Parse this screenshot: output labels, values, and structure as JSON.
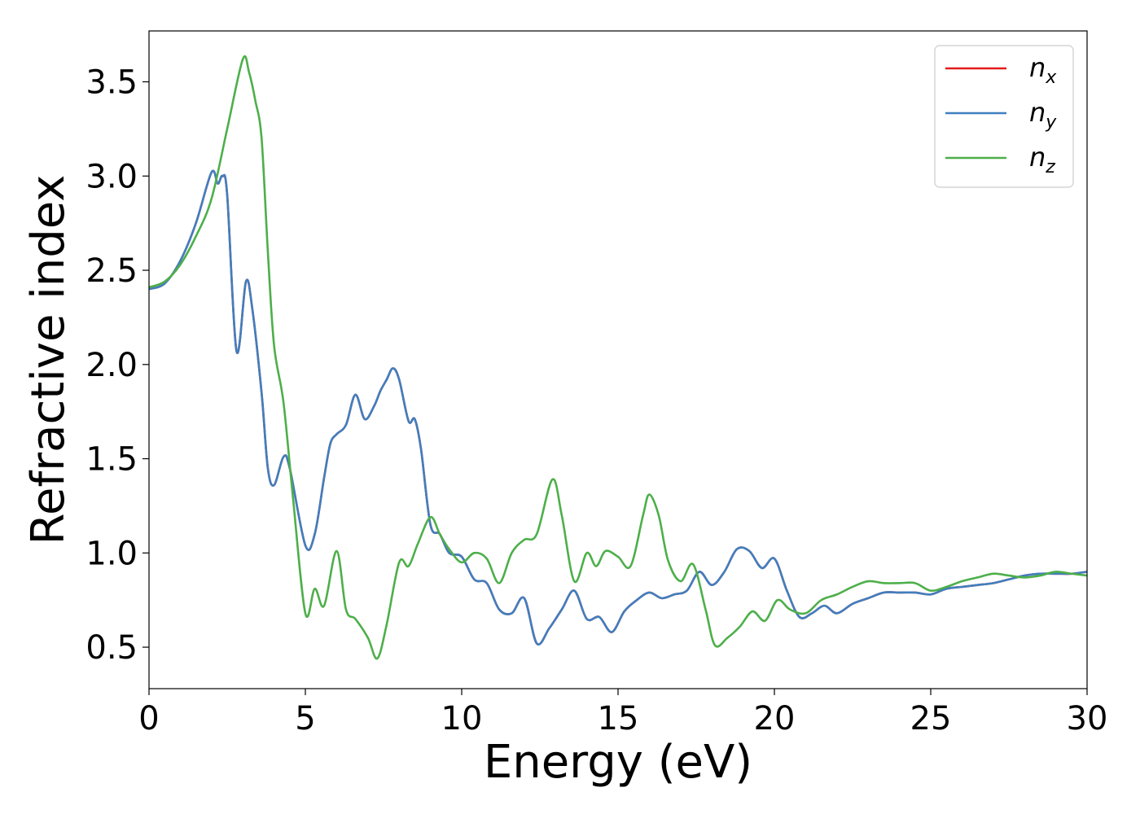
{
  "chart_data": {
    "type": "line",
    "xlabel": "Energy (eV)",
    "ylabel": "Refractive index",
    "xlim": [
      0,
      30
    ],
    "ylim": [
      0.28,
      3.77
    ],
    "xticks": [
      0,
      5,
      10,
      15,
      20,
      25,
      30
    ],
    "yticks": [
      0.5,
      1.0,
      1.5,
      2.0,
      2.5,
      3.0,
      3.5
    ],
    "xtick_labels": [
      "0",
      "5",
      "10",
      "15",
      "20",
      "25",
      "30"
    ],
    "ytick_labels": [
      "0.5",
      "1.0",
      "1.5",
      "2.0",
      "2.5",
      "3.0",
      "3.5"
    ],
    "grid": false,
    "legend_position": "top-right",
    "series": [
      {
        "name": "n_x",
        "legend_base": "n",
        "legend_sub": "x",
        "color": "#e41a1c",
        "points": [
          [
            0,
            2.4
          ],
          [
            0.5,
            2.43
          ],
          [
            1.0,
            2.55
          ],
          [
            1.5,
            2.75
          ],
          [
            2.0,
            3.02
          ],
          [
            2.2,
            2.96
          ],
          [
            2.35,
            3.0
          ],
          [
            2.5,
            2.9
          ],
          [
            2.8,
            2.07
          ],
          [
            3.1,
            2.44
          ],
          [
            3.3,
            2.3
          ],
          [
            3.6,
            1.85
          ],
          [
            3.8,
            1.45
          ],
          [
            4.0,
            1.36
          ],
          [
            4.3,
            1.51
          ],
          [
            4.5,
            1.45
          ],
          [
            5.0,
            1.04
          ],
          [
            5.3,
            1.1
          ],
          [
            5.6,
            1.4
          ],
          [
            5.8,
            1.58
          ],
          [
            6.0,
            1.63
          ],
          [
            6.3,
            1.68
          ],
          [
            6.6,
            1.84
          ],
          [
            6.9,
            1.71
          ],
          [
            7.2,
            1.78
          ],
          [
            7.4,
            1.86
          ],
          [
            7.6,
            1.92
          ],
          [
            7.8,
            1.98
          ],
          [
            8.0,
            1.92
          ],
          [
            8.3,
            1.7
          ],
          [
            8.5,
            1.71
          ],
          [
            8.7,
            1.55
          ],
          [
            9.0,
            1.15
          ],
          [
            9.3,
            1.1
          ],
          [
            9.6,
            1.0
          ],
          [
            10.0,
            0.98
          ],
          [
            10.4,
            0.86
          ],
          [
            10.8,
            0.84
          ],
          [
            11.2,
            0.7
          ],
          [
            11.6,
            0.68
          ],
          [
            12.0,
            0.76
          ],
          [
            12.4,
            0.52
          ],
          [
            12.8,
            0.6
          ],
          [
            13.2,
            0.7
          ],
          [
            13.6,
            0.8
          ],
          [
            14.0,
            0.65
          ],
          [
            14.4,
            0.66
          ],
          [
            14.8,
            0.58
          ],
          [
            15.2,
            0.69
          ],
          [
            15.6,
            0.75
          ],
          [
            16.0,
            0.79
          ],
          [
            16.4,
            0.76
          ],
          [
            16.8,
            0.78
          ],
          [
            17.2,
            0.8
          ],
          [
            17.6,
            0.9
          ],
          [
            18.0,
            0.83
          ],
          [
            18.4,
            0.9
          ],
          [
            18.8,
            1.02
          ],
          [
            19.2,
            1.01
          ],
          [
            19.6,
            0.92
          ],
          [
            20.0,
            0.97
          ],
          [
            20.4,
            0.8
          ],
          [
            20.8,
            0.66
          ],
          [
            21.2,
            0.68
          ],
          [
            21.6,
            0.72
          ],
          [
            22.0,
            0.68
          ],
          [
            22.5,
            0.73
          ],
          [
            23.0,
            0.76
          ],
          [
            23.5,
            0.79
          ],
          [
            24.0,
            0.79
          ],
          [
            24.5,
            0.79
          ],
          [
            25.0,
            0.78
          ],
          [
            25.5,
            0.81
          ],
          [
            26.0,
            0.82
          ],
          [
            26.5,
            0.83
          ],
          [
            27.0,
            0.84
          ],
          [
            27.5,
            0.86
          ],
          [
            28.0,
            0.88
          ],
          [
            28.5,
            0.89
          ],
          [
            29.0,
            0.89
          ],
          [
            29.5,
            0.89
          ],
          [
            30.0,
            0.9
          ]
        ]
      },
      {
        "name": "n_y",
        "legend_base": "n",
        "legend_sub": "y",
        "color": "#3f7fbf",
        "points": [
          [
            0,
            2.4
          ],
          [
            0.5,
            2.43
          ],
          [
            1.0,
            2.55
          ],
          [
            1.5,
            2.75
          ],
          [
            2.0,
            3.02
          ],
          [
            2.2,
            2.96
          ],
          [
            2.35,
            3.0
          ],
          [
            2.5,
            2.9
          ],
          [
            2.8,
            2.07
          ],
          [
            3.1,
            2.44
          ],
          [
            3.3,
            2.3
          ],
          [
            3.6,
            1.85
          ],
          [
            3.8,
            1.45
          ],
          [
            4.0,
            1.36
          ],
          [
            4.3,
            1.51
          ],
          [
            4.5,
            1.45
          ],
          [
            5.0,
            1.04
          ],
          [
            5.3,
            1.1
          ],
          [
            5.6,
            1.4
          ],
          [
            5.8,
            1.58
          ],
          [
            6.0,
            1.63
          ],
          [
            6.3,
            1.68
          ],
          [
            6.6,
            1.84
          ],
          [
            6.9,
            1.71
          ],
          [
            7.2,
            1.78
          ],
          [
            7.4,
            1.86
          ],
          [
            7.6,
            1.92
          ],
          [
            7.8,
            1.98
          ],
          [
            8.0,
            1.92
          ],
          [
            8.3,
            1.7
          ],
          [
            8.5,
            1.71
          ],
          [
            8.7,
            1.55
          ],
          [
            9.0,
            1.15
          ],
          [
            9.3,
            1.1
          ],
          [
            9.6,
            1.0
          ],
          [
            10.0,
            0.98
          ],
          [
            10.4,
            0.86
          ],
          [
            10.8,
            0.84
          ],
          [
            11.2,
            0.7
          ],
          [
            11.6,
            0.68
          ],
          [
            12.0,
            0.76
          ],
          [
            12.4,
            0.52
          ],
          [
            12.8,
            0.6
          ],
          [
            13.2,
            0.7
          ],
          [
            13.6,
            0.8
          ],
          [
            14.0,
            0.65
          ],
          [
            14.4,
            0.66
          ],
          [
            14.8,
            0.58
          ],
          [
            15.2,
            0.69
          ],
          [
            15.6,
            0.75
          ],
          [
            16.0,
            0.79
          ],
          [
            16.4,
            0.76
          ],
          [
            16.8,
            0.78
          ],
          [
            17.2,
            0.8
          ],
          [
            17.6,
            0.9
          ],
          [
            18.0,
            0.83
          ],
          [
            18.4,
            0.9
          ],
          [
            18.8,
            1.02
          ],
          [
            19.2,
            1.01
          ],
          [
            19.6,
            0.92
          ],
          [
            20.0,
            0.97
          ],
          [
            20.4,
            0.8
          ],
          [
            20.8,
            0.66
          ],
          [
            21.2,
            0.68
          ],
          [
            21.6,
            0.72
          ],
          [
            22.0,
            0.68
          ],
          [
            22.5,
            0.73
          ],
          [
            23.0,
            0.76
          ],
          [
            23.5,
            0.79
          ],
          [
            24.0,
            0.79
          ],
          [
            24.5,
            0.79
          ],
          [
            25.0,
            0.78
          ],
          [
            25.5,
            0.81
          ],
          [
            26.0,
            0.82
          ],
          [
            26.5,
            0.83
          ],
          [
            27.0,
            0.84
          ],
          [
            27.5,
            0.86
          ],
          [
            28.0,
            0.88
          ],
          [
            28.5,
            0.89
          ],
          [
            29.0,
            0.89
          ],
          [
            29.5,
            0.89
          ],
          [
            30.0,
            0.9
          ]
        ]
      },
      {
        "name": "n_z",
        "legend_base": "n",
        "legend_sub": "z",
        "color": "#4daf4a",
        "points": [
          [
            0,
            2.41
          ],
          [
            0.5,
            2.44
          ],
          [
            1.0,
            2.53
          ],
          [
            1.5,
            2.68
          ],
          [
            2.0,
            2.88
          ],
          [
            2.5,
            3.25
          ],
          [
            3.0,
            3.62
          ],
          [
            3.2,
            3.55
          ],
          [
            3.4,
            3.4
          ],
          [
            3.6,
            3.2
          ],
          [
            3.8,
            2.6
          ],
          [
            4.0,
            2.1
          ],
          [
            4.3,
            1.8
          ],
          [
            4.6,
            1.3
          ],
          [
            5.0,
            0.68
          ],
          [
            5.3,
            0.81
          ],
          [
            5.6,
            0.72
          ],
          [
            6.0,
            1.01
          ],
          [
            6.3,
            0.7
          ],
          [
            6.6,
            0.65
          ],
          [
            7.0,
            0.55
          ],
          [
            7.3,
            0.44
          ],
          [
            7.6,
            0.62
          ],
          [
            8.0,
            0.95
          ],
          [
            8.3,
            0.93
          ],
          [
            8.6,
            1.05
          ],
          [
            9.0,
            1.19
          ],
          [
            9.3,
            1.1
          ],
          [
            9.6,
            1.02
          ],
          [
            10.0,
            0.95
          ],
          [
            10.4,
            1.0
          ],
          [
            10.8,
            0.97
          ],
          [
            11.2,
            0.84
          ],
          [
            11.6,
            1.0
          ],
          [
            12.0,
            1.07
          ],
          [
            12.4,
            1.1
          ],
          [
            12.9,
            1.39
          ],
          [
            13.2,
            1.2
          ],
          [
            13.6,
            0.85
          ],
          [
            14.0,
            1.0
          ],
          [
            14.3,
            0.93
          ],
          [
            14.6,
            1.01
          ],
          [
            15.0,
            0.98
          ],
          [
            15.4,
            0.93
          ],
          [
            15.8,
            1.2
          ],
          [
            16.0,
            1.31
          ],
          [
            16.3,
            1.2
          ],
          [
            16.6,
            0.96
          ],
          [
            17.0,
            0.85
          ],
          [
            17.4,
            0.94
          ],
          [
            17.8,
            0.7
          ],
          [
            18.1,
            0.51
          ],
          [
            18.5,
            0.55
          ],
          [
            18.9,
            0.61
          ],
          [
            19.3,
            0.69
          ],
          [
            19.7,
            0.64
          ],
          [
            20.1,
            0.75
          ],
          [
            20.5,
            0.7
          ],
          [
            21.0,
            0.68
          ],
          [
            21.5,
            0.75
          ],
          [
            22.0,
            0.78
          ],
          [
            22.5,
            0.82
          ],
          [
            23.0,
            0.85
          ],
          [
            23.5,
            0.84
          ],
          [
            24.0,
            0.84
          ],
          [
            24.5,
            0.84
          ],
          [
            25.0,
            0.8
          ],
          [
            25.5,
            0.82
          ],
          [
            26.0,
            0.85
          ],
          [
            26.5,
            0.87
          ],
          [
            27.0,
            0.89
          ],
          [
            27.5,
            0.88
          ],
          [
            28.0,
            0.87
          ],
          [
            28.5,
            0.88
          ],
          [
            29.0,
            0.9
          ],
          [
            29.5,
            0.89
          ],
          [
            30.0,
            0.88
          ]
        ]
      }
    ]
  }
}
